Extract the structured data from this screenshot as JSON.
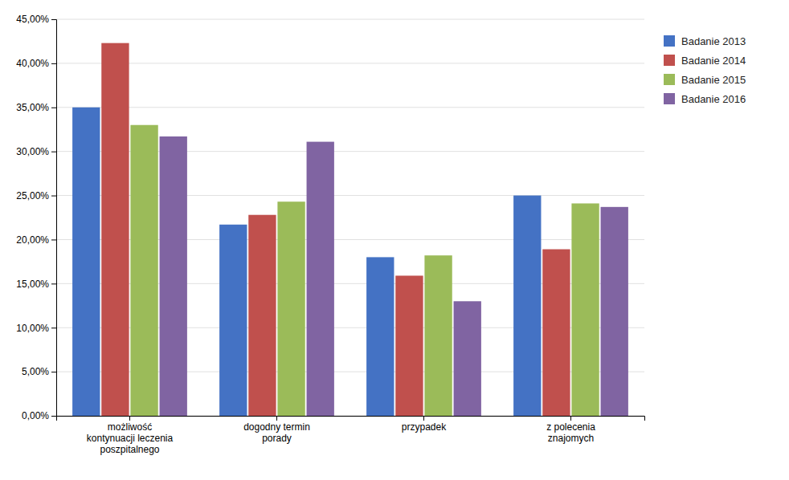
{
  "chart_data": {
    "type": "bar",
    "categories": [
      "możliwość\nkontynuacji leczenia\nposzpitalnego",
      "dogodny termin\nporady",
      "przypadek",
      "z polecenia\nznajomych"
    ],
    "series": [
      {
        "name": "Badanie 2013",
        "color": "#4472C4",
        "values": [
          0.35,
          0.217,
          0.18,
          0.25
        ]
      },
      {
        "name": "Badanie 2014",
        "color": "#C0504D",
        "values": [
          0.423,
          0.228,
          0.159,
          0.189
        ]
      },
      {
        "name": "Badanie 2015",
        "color": "#9BBB59",
        "values": [
          0.33,
          0.243,
          0.182,
          0.241
        ]
      },
      {
        "name": "Badanie 2016",
        "color": "#8064A2",
        "values": [
          0.317,
          0.311,
          0.13,
          0.237
        ]
      }
    ],
    "ylim": [
      0,
      0.45
    ],
    "yticks": [
      {
        "value": 0.0,
        "label": "0,00%"
      },
      {
        "value": 0.05,
        "label": "5,00%"
      },
      {
        "value": 0.1,
        "label": "10,00%"
      },
      {
        "value": 0.15,
        "label": "15,00%"
      },
      {
        "value": 0.2,
        "label": "20,00%"
      },
      {
        "value": 0.25,
        "label": "25,00%"
      },
      {
        "value": 0.3,
        "label": "30,00%"
      },
      {
        "value": 0.35,
        "label": "35,00%"
      },
      {
        "value": 0.4,
        "label": "40,00%"
      },
      {
        "value": 0.45,
        "label": "45,00%"
      }
    ],
    "grid": true,
    "legend": "right"
  }
}
